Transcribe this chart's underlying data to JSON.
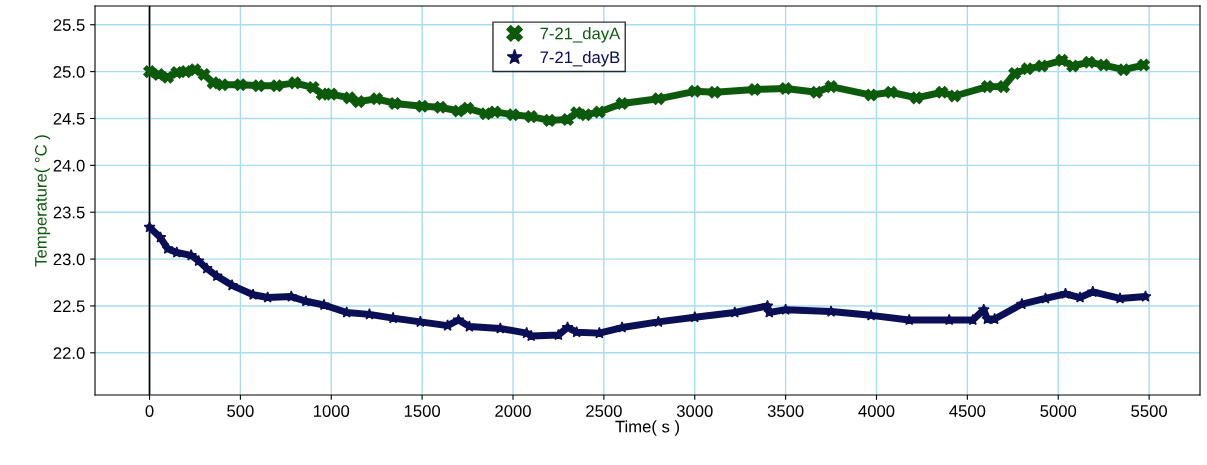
{
  "chart_data": {
    "type": "line",
    "xlabel": "Time( s )",
    "ylabel": "Temperature( °C )",
    "series": [
      {
        "name": "7-21_dayA",
        "color": "#0d5a0d",
        "marker": "cross",
        "x": [
          0,
          50,
          100,
          150,
          200,
          250,
          300,
          350,
          400,
          500,
          600,
          700,
          800,
          900,
          950,
          1000,
          1100,
          1150,
          1250,
          1350,
          1500,
          1600,
          1700,
          1750,
          1850,
          1900,
          2000,
          2100,
          2200,
          2300,
          2350,
          2400,
          2475,
          2600,
          2800,
          3000,
          3110,
          3330,
          3500,
          3670,
          3750,
          3970,
          4080,
          4220,
          4360,
          4430,
          4610,
          4700,
          4760,
          4830,
          4910,
          5020,
          5080,
          5170,
          5250,
          5360,
          5470
        ],
        "values": [
          25.0,
          24.97,
          24.94,
          24.99,
          25.0,
          25.02,
          24.97,
          24.88,
          24.86,
          24.86,
          24.85,
          24.85,
          24.88,
          24.83,
          24.76,
          24.76,
          24.72,
          24.68,
          24.71,
          24.66,
          24.63,
          24.62,
          24.58,
          24.61,
          24.55,
          24.57,
          24.54,
          24.52,
          24.48,
          24.49,
          24.56,
          24.54,
          24.57,
          24.66,
          24.71,
          24.79,
          24.78,
          24.81,
          24.82,
          24.78,
          24.84,
          24.75,
          24.78,
          24.72,
          24.78,
          24.74,
          24.84,
          24.84,
          24.98,
          25.03,
          25.06,
          25.12,
          25.06,
          25.1,
          25.07,
          25.02,
          25.07
        ]
      },
      {
        "name": "7-21_dayB",
        "color": "#0b0f55",
        "marker": "star",
        "x": [
          0,
          60,
          100,
          150,
          229,
          270,
          315,
          370,
          454,
          570,
          650,
          780,
          860,
          960,
          1085,
          1210,
          1340,
          1490,
          1640,
          1700,
          1760,
          1930,
          2075,
          2100,
          2250,
          2300,
          2350,
          2475,
          2600,
          2800,
          3000,
          3220,
          3400,
          3410,
          3500,
          3750,
          3970,
          4180,
          4400,
          4530,
          4590,
          4610,
          4650,
          4800,
          4930,
          5040,
          5120,
          5190,
          5340,
          5480
        ],
        "values": [
          23.34,
          23.23,
          23.11,
          23.07,
          23.04,
          22.98,
          22.9,
          22.82,
          22.72,
          22.62,
          22.59,
          22.6,
          22.55,
          22.51,
          22.43,
          22.41,
          22.37,
          22.33,
          22.29,
          22.35,
          22.28,
          22.26,
          22.21,
          22.18,
          22.19,
          22.27,
          22.22,
          22.21,
          22.27,
          22.33,
          22.38,
          22.43,
          22.5,
          22.43,
          22.46,
          22.44,
          22.4,
          22.35,
          22.35,
          22.35,
          22.46,
          22.36,
          22.36,
          22.52,
          22.58,
          22.63,
          22.59,
          22.65,
          22.58,
          22.6
        ]
      }
    ],
    "xlim": [
      -300,
      5780
    ],
    "ylim": [
      21.55,
      25.7
    ],
    "xticks": [
      0,
      500,
      1000,
      1500,
      2000,
      2500,
      3000,
      3500,
      4000,
      4500,
      5000,
      5500
    ],
    "yticks": [
      {
        "value": 22,
        "label": "22.0"
      },
      22.5,
      {
        "value": 23,
        "label": "23.0"
      },
      23.5,
      {
        "value": 24,
        "label": "24.0"
      },
      24.5,
      {
        "value": 25,
        "label": "25.0"
      },
      25.5
    ],
    "ref_lines": [
      {
        "axis": "x",
        "value": 0,
        "color": "#000000"
      }
    ],
    "grid": true,
    "legend": "top",
    "line_style": "solid"
  }
}
